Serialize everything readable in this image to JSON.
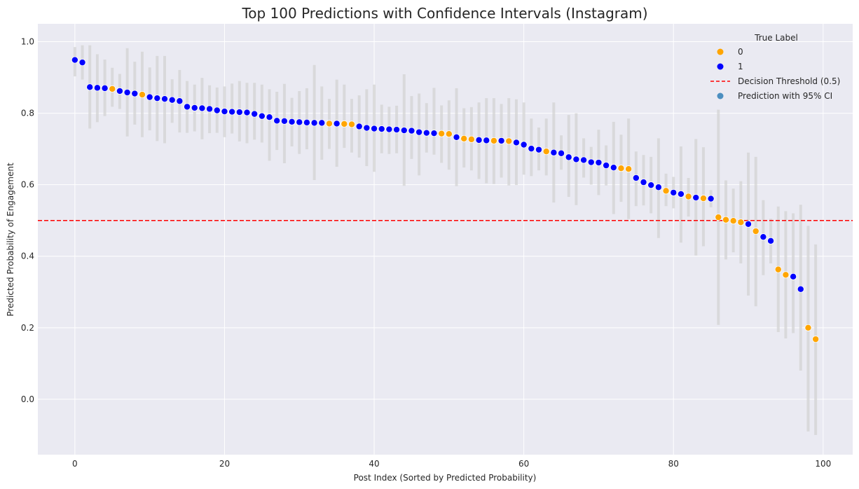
{
  "chart_data": {
    "type": "scatter",
    "title": "Top 100 Predictions with Confidence Intervals (Instagram)",
    "xlabel": "Post Index (Sorted by Predicted Probability)",
    "ylabel": "Predicted Probability of Engagement",
    "xlim": [
      -4.95,
      103.95
    ],
    "ylim": [
      -0.155,
      1.05
    ],
    "xticks": [
      0,
      20,
      40,
      60,
      80,
      100
    ],
    "yticks": [
      0.0,
      0.2,
      0.4,
      0.6,
      0.8,
      1.0
    ],
    "ytick_labels": [
      "0.0",
      "0.2",
      "0.4",
      "0.6",
      "0.8",
      "1.0"
    ],
    "grid": true,
    "legend_position": "top-right",
    "legend_title": "True Label",
    "legend": [
      "0",
      "1",
      "Decision Threshold (0.5)",
      "Prediction with 95% CI"
    ],
    "colors": {
      "label0": "#ffa500",
      "label1": "#0000ff",
      "threshold": "#ff0000",
      "ci": "#d3d3d3",
      "ci_legend": "#4c8fc0",
      "plot_bg": "#eaeaf2",
      "grid": "#ffffff"
    },
    "threshold": 0.5,
    "x": [
      0,
      1,
      2,
      3,
      4,
      5,
      6,
      7,
      8,
      9,
      10,
      11,
      12,
      13,
      14,
      15,
      16,
      17,
      18,
      19,
      20,
      21,
      22,
      23,
      24,
      25,
      26,
      27,
      28,
      29,
      30,
      31,
      32,
      33,
      34,
      35,
      36,
      37,
      38,
      39,
      40,
      41,
      42,
      43,
      44,
      45,
      46,
      47,
      48,
      49,
      50,
      51,
      52,
      53,
      54,
      55,
      56,
      57,
      58,
      59,
      60,
      61,
      62,
      63,
      64,
      65,
      66,
      67,
      68,
      69,
      70,
      71,
      72,
      73,
      74,
      75,
      76,
      77,
      78,
      79,
      80,
      81,
      82,
      83,
      84,
      85,
      86,
      87,
      88,
      89,
      90,
      91,
      92,
      93,
      94,
      95,
      96,
      97,
      98,
      99
    ],
    "probability": [
      0.949,
      0.942,
      0.873,
      0.871,
      0.87,
      0.868,
      0.862,
      0.858,
      0.855,
      0.852,
      0.845,
      0.842,
      0.84,
      0.837,
      0.834,
      0.818,
      0.815,
      0.814,
      0.812,
      0.808,
      0.805,
      0.804,
      0.803,
      0.802,
      0.798,
      0.792,
      0.789,
      0.779,
      0.778,
      0.776,
      0.775,
      0.774,
      0.773,
      0.773,
      0.771,
      0.771,
      0.77,
      0.769,
      0.763,
      0.759,
      0.757,
      0.756,
      0.755,
      0.754,
      0.752,
      0.751,
      0.747,
      0.745,
      0.744,
      0.743,
      0.742,
      0.733,
      0.729,
      0.727,
      0.725,
      0.724,
      0.723,
      0.723,
      0.722,
      0.718,
      0.712,
      0.701,
      0.698,
      0.693,
      0.69,
      0.688,
      0.677,
      0.671,
      0.669,
      0.663,
      0.662,
      0.654,
      0.648,
      0.646,
      0.644,
      0.619,
      0.607,
      0.599,
      0.593,
      0.583,
      0.578,
      0.574,
      0.567,
      0.564,
      0.562,
      0.561,
      0.509,
      0.502,
      0.499,
      0.495,
      0.49,
      0.47,
      0.454,
      0.443,
      0.363,
      0.348,
      0.343,
      0.308,
      0.2,
      0.168
    ],
    "ci_lower": [
      0.903,
      0.894,
      0.757,
      0.775,
      0.792,
      0.818,
      0.812,
      0.735,
      0.768,
      0.733,
      0.752,
      0.722,
      0.716,
      0.773,
      0.746,
      0.745,
      0.749,
      0.727,
      0.744,
      0.745,
      0.733,
      0.743,
      0.721,
      0.716,
      0.726,
      0.718,
      0.667,
      0.697,
      0.66,
      0.707,
      0.686,
      0.699,
      0.613,
      0.67,
      0.7,
      0.65,
      0.703,
      0.69,
      0.676,
      0.652,
      0.636,
      0.688,
      0.686,
      0.688,
      0.597,
      0.672,
      0.626,
      0.69,
      0.684,
      0.661,
      0.642,
      0.596,
      0.648,
      0.64,
      0.616,
      0.604,
      0.602,
      0.62,
      0.598,
      0.599,
      0.628,
      0.624,
      0.64,
      0.626,
      0.55,
      0.642,
      0.566,
      0.543,
      0.62,
      0.6,
      0.571,
      0.598,
      0.518,
      0.552,
      0.504,
      0.54,
      0.542,
      0.52,
      0.451,
      0.54,
      0.534,
      0.438,
      0.511,
      0.402,
      0.428,
      0.537,
      0.208,
      0.391,
      0.411,
      0.38,
      0.29,
      0.26,
      0.347,
      0.38,
      0.188,
      0.17,
      0.185,
      0.08,
      -0.09,
      -0.1
    ],
    "ci_upper": [
      0.985,
      0.99,
      0.99,
      0.965,
      0.95,
      0.927,
      0.91,
      0.982,
      0.944,
      0.972,
      0.928,
      0.96,
      0.96,
      0.895,
      0.921,
      0.89,
      0.88,
      0.899,
      0.878,
      0.872,
      0.875,
      0.883,
      0.89,
      0.885,
      0.885,
      0.88,
      0.867,
      0.86,
      0.882,
      0.843,
      0.862,
      0.87,
      0.935,
      0.875,
      0.84,
      0.894,
      0.88,
      0.84,
      0.85,
      0.867,
      0.88,
      0.824,
      0.818,
      0.821,
      0.909,
      0.848,
      0.855,
      0.828,
      0.871,
      0.822,
      0.836,
      0.87,
      0.814,
      0.817,
      0.83,
      0.842,
      0.842,
      0.826,
      0.842,
      0.839,
      0.83,
      0.785,
      0.76,
      0.785,
      0.83,
      0.738,
      0.795,
      0.8,
      0.73,
      0.706,
      0.754,
      0.71,
      0.776,
      0.74,
      0.785,
      0.693,
      0.683,
      0.678,
      0.73,
      0.631,
      0.622,
      0.707,
      0.619,
      0.728,
      0.705,
      0.585,
      0.81,
      0.612,
      0.589,
      0.61,
      0.69,
      0.678,
      0.557,
      0.505,
      0.539,
      0.526,
      0.52,
      0.544,
      0.485,
      0.433
    ],
    "true_label": [
      1,
      1,
      1,
      1,
      1,
      0,
      1,
      1,
      1,
      0,
      1,
      1,
      1,
      1,
      1,
      1,
      1,
      1,
      1,
      1,
      1,
      1,
      1,
      1,
      1,
      1,
      1,
      1,
      1,
      1,
      1,
      1,
      1,
      1,
      0,
      1,
      0,
      0,
      1,
      1,
      1,
      1,
      1,
      1,
      1,
      1,
      1,
      1,
      1,
      0,
      0,
      1,
      0,
      0,
      1,
      1,
      0,
      1,
      0,
      1,
      1,
      1,
      1,
      0,
      1,
      1,
      1,
      1,
      1,
      1,
      1,
      1,
      1,
      0,
      0,
      1,
      1,
      1,
      1,
      0,
      1,
      1,
      0,
      1,
      0,
      1,
      0,
      0,
      0,
      0,
      1,
      0,
      1,
      1,
      0,
      0,
      1,
      1,
      0,
      0
    ]
  }
}
